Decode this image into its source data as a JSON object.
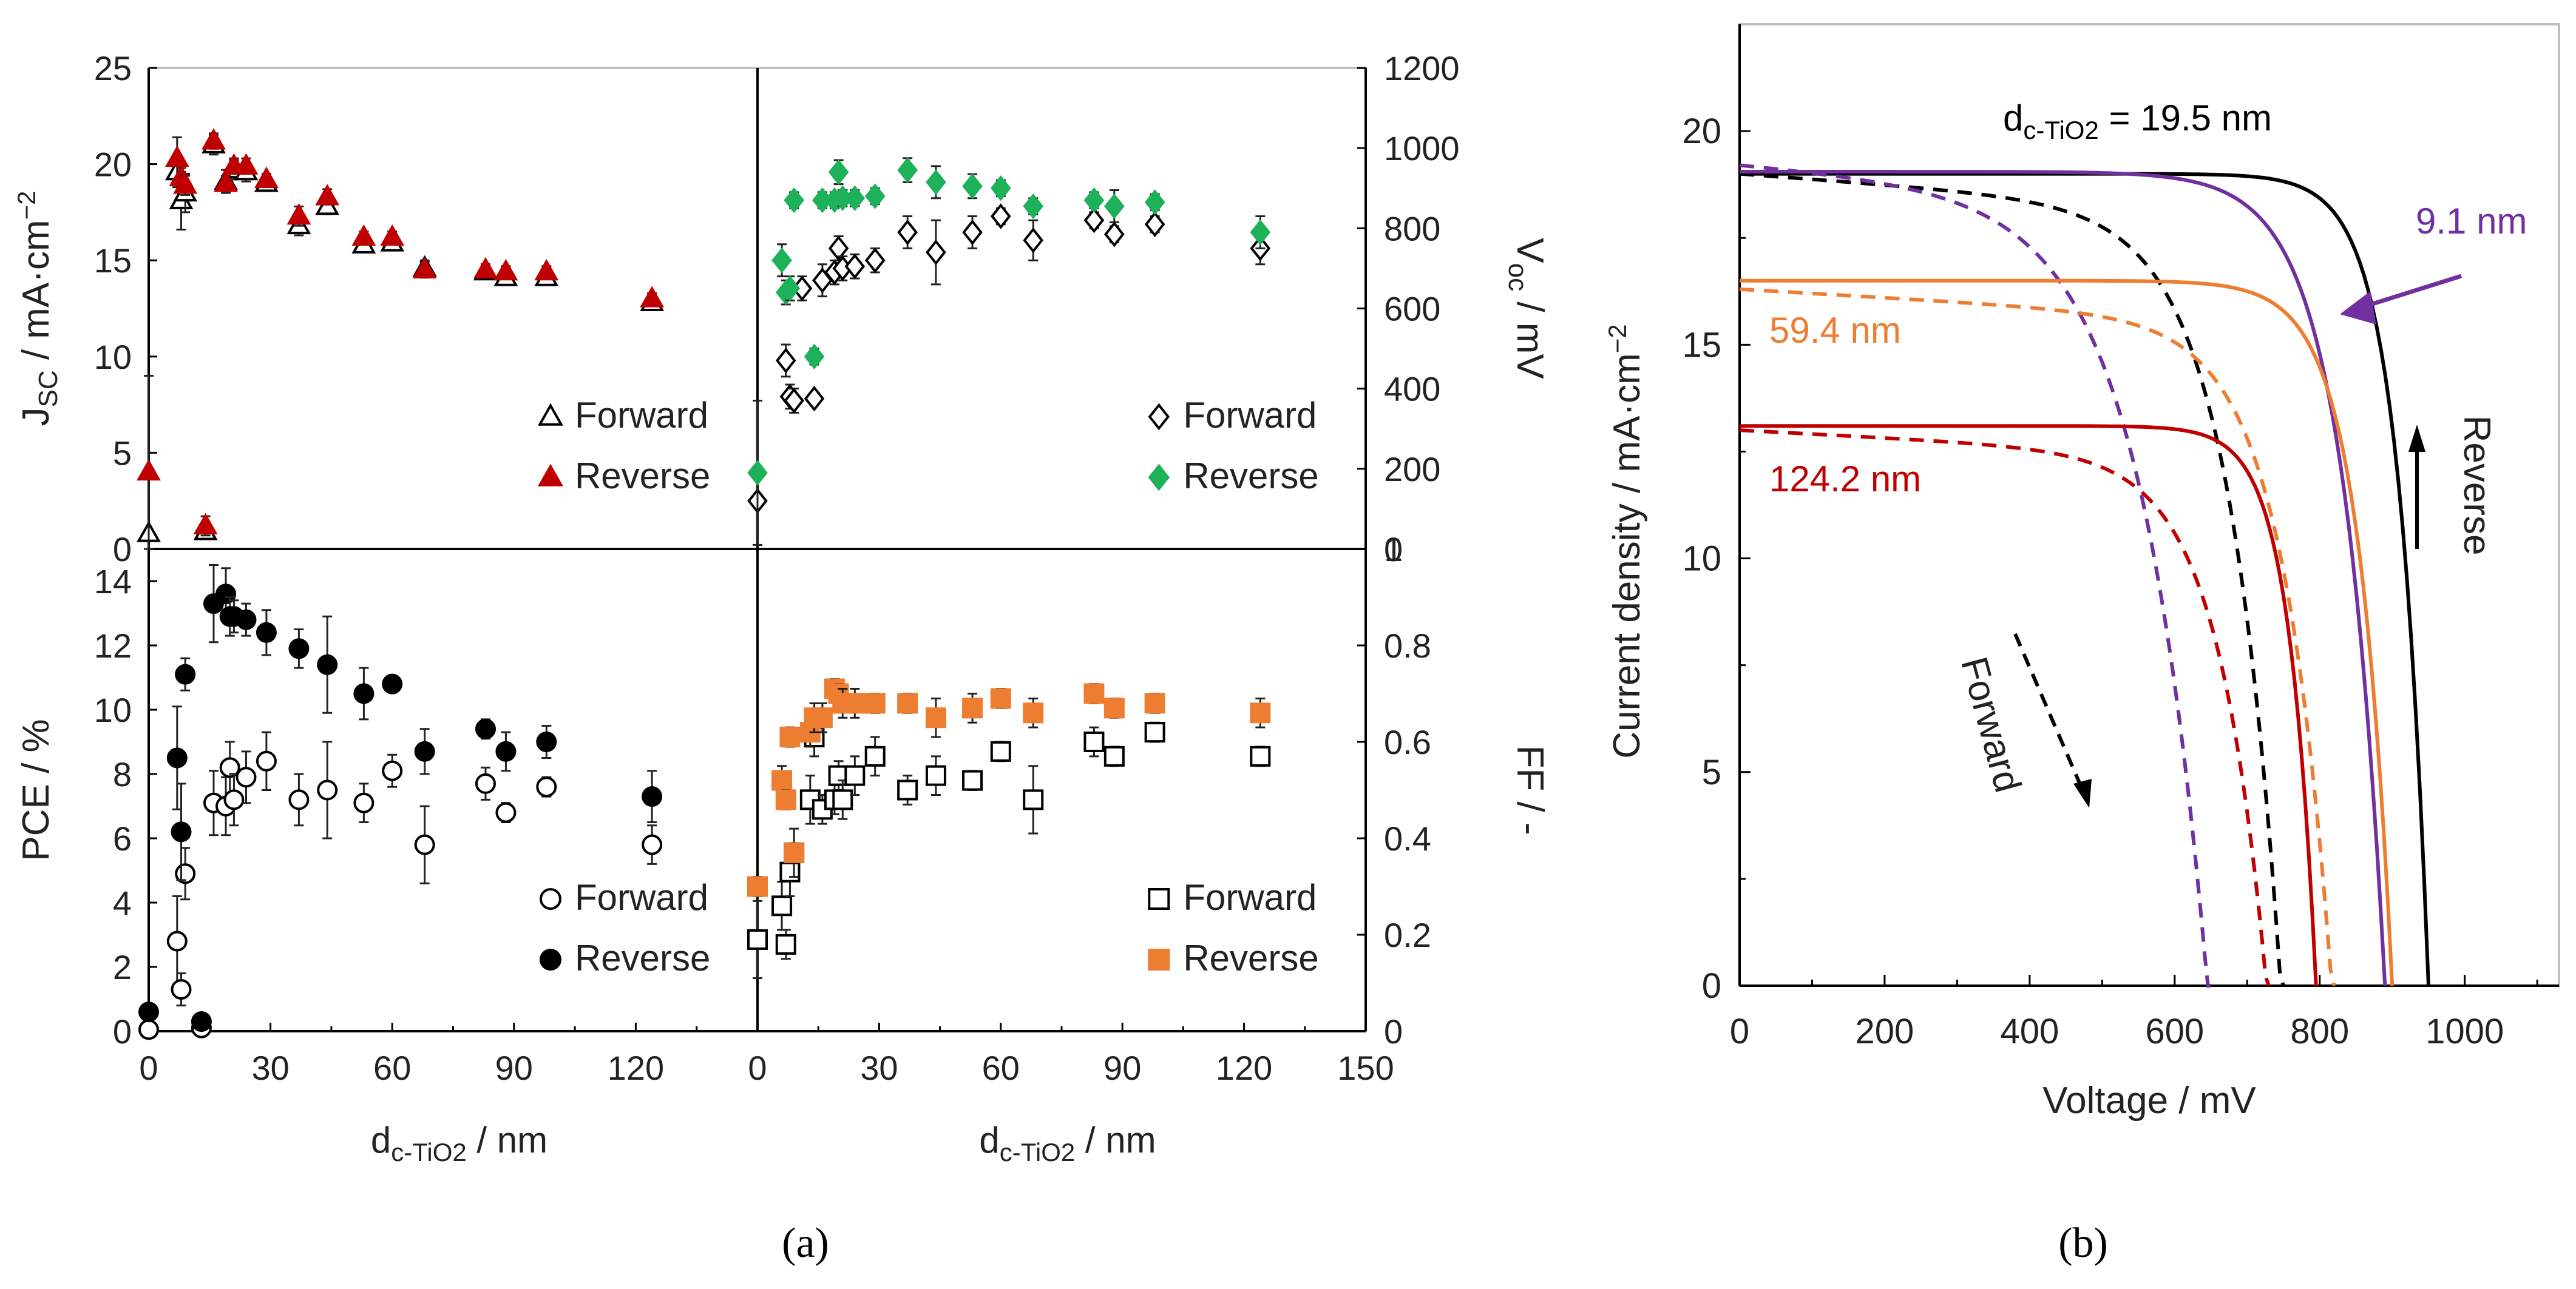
{
  "figure": {
    "panel_a_label": "(a)",
    "panel_b_label": "(b)"
  },
  "colors": {
    "red": "#c00000",
    "green": "#1db25a",
    "orange": "#ed7d31",
    "purple": "#7030a0",
    "black": "#000000"
  },
  "chart_data": [
    {
      "id": "jsc",
      "type": "scatter",
      "panel": "a",
      "position": "top-left",
      "ylabel_main": "J",
      "ylabel_sub": "SC",
      "ylabel_rest": " / mA·cm",
      "ylabel_sup": "−2",
      "ylim": [
        0,
        25
      ],
      "yticks": [
        "0",
        "5",
        "10",
        "15",
        "20",
        "25"
      ],
      "xlim": [
        0,
        150
      ],
      "series": [
        {
          "name": "Forward",
          "marker": "triangle-open",
          "color": "#000000",
          "x": [
            0,
            7,
            8,
            9,
            14,
            16,
            19,
            21,
            24,
            29,
            37,
            44,
            53,
            60,
            68,
            83,
            88,
            98,
            124
          ],
          "y": [
            0.8,
            19.6,
            18.1,
            18.5,
            0.9,
            21.0,
            19.1,
            19.7,
            19.6,
            19.0,
            16.8,
            17.8,
            15.8,
            15.9,
            14.6,
            14.4,
            14.1,
            14.1,
            12.8
          ],
          "err": [
            0,
            0.8,
            1.5,
            1.0,
            0,
            0.5,
            0.6,
            0.5,
            0.5,
            0.4,
            0.5,
            0.4,
            0.3,
            0.3,
            0.4,
            0.3,
            0.3,
            0.3,
            0.3
          ]
        },
        {
          "name": "Reverse",
          "marker": "triangle-filled",
          "color": "#c00000",
          "x": [
            0,
            7,
            8,
            9,
            14,
            16,
            19,
            21,
            24,
            29,
            37,
            44,
            53,
            60,
            68,
            83,
            88,
            98,
            124
          ],
          "y": [
            4.0,
            20.3,
            19.3,
            18.9,
            1.2,
            21.2,
            19.0,
            19.9,
            19.9,
            19.2,
            17.3,
            18.3,
            16.2,
            16.2,
            14.5,
            14.5,
            14.4,
            14.4,
            13.0
          ],
          "err": [
            5.0,
            1.1,
            0.5,
            0.5,
            0.5,
            0.4,
            0.4,
            0.4,
            0.4,
            0.3,
            0.5,
            0.4,
            0.3,
            0.3,
            0.4,
            0.3,
            0.3,
            0.3,
            0.3
          ]
        }
      ],
      "legend": [
        {
          "label": "Forward",
          "marker": "triangle-open",
          "color": "#000000"
        },
        {
          "label": "Reverse",
          "marker": "triangle-filled",
          "color": "#c00000"
        }
      ],
      "legend_placement": "bottom-right"
    },
    {
      "id": "voc",
      "type": "scatter",
      "panel": "a",
      "position": "top-right",
      "ylabel_main": "V",
      "ylabel_sub": "oc",
      "ylabel_rest": " / mV",
      "ylim": [
        0,
        1200
      ],
      "yticks": [
        "0",
        "200",
        "400",
        "600",
        "800",
        "1000",
        "1200"
      ],
      "xlim": [
        0,
        150
      ],
      "series": [
        {
          "name": "Forward",
          "marker": "diamond-open",
          "color": "#000000",
          "x": [
            0,
            7,
            8,
            9,
            11,
            14,
            16,
            19,
            20,
            21,
            24,
            29,
            37,
            44,
            53,
            60,
            68,
            83,
            88,
            98,
            124
          ],
          "y": [
            120,
            470,
            380,
            370,
            650,
            375,
            670,
            690,
            750,
            700,
            705,
            720,
            790,
            740,
            790,
            830,
            770,
            820,
            785,
            810,
            750
          ],
          "err": [
            0,
            40,
            30,
            30,
            30,
            0,
            40,
            30,
            30,
            30,
            30,
            30,
            40,
            80,
            40,
            20,
            50,
            20,
            20,
            20,
            40
          ]
        },
        {
          "name": "Reverse",
          "marker": "diamond-filled",
          "color": "#1db25a",
          "x": [
            0,
            6,
            7,
            8,
            9,
            14,
            16,
            19,
            20,
            21,
            24,
            29,
            37,
            44,
            53,
            60,
            68,
            83,
            88,
            98,
            124
          ],
          "y": [
            190,
            720,
            640,
            650,
            870,
            480,
            870,
            870,
            940,
            875,
            875,
            880,
            945,
            915,
            905,
            900,
            855,
            870,
            855,
            865,
            790
          ],
          "err": [
            180,
            40,
            30,
            30,
            20,
            20,
            20,
            20,
            30,
            20,
            20,
            20,
            30,
            40,
            30,
            20,
            20,
            20,
            40,
            20,
            40
          ]
        }
      ],
      "legend": [
        {
          "label": "Forward",
          "marker": "diamond-open",
          "color": "#000000"
        },
        {
          "label": "Reverse",
          "marker": "diamond-filled",
          "color": "#1db25a"
        }
      ],
      "legend_placement": "bottom-right"
    },
    {
      "id": "pce",
      "type": "scatter",
      "panel": "a",
      "position": "bottom-left",
      "ylabel_main": "PCE / %",
      "xlabel_main": "d",
      "xlabel_sub": "c-TiO2",
      "xlabel_rest": " / nm",
      "ylim": [
        0,
        15
      ],
      "yticks": [
        "0",
        "2",
        "4",
        "6",
        "8",
        "10",
        "12",
        "14"
      ],
      "xlim": [
        0,
        150
      ],
      "xticks": [
        "0",
        "30",
        "60",
        "90",
        "120"
      ],
      "series": [
        {
          "name": "Forward",
          "marker": "circle-open",
          "color": "#000000",
          "x": [
            0,
            7,
            8,
            9,
            13,
            16,
            19,
            20,
            21,
            24,
            29,
            37,
            44,
            53,
            60,
            68,
            83,
            88,
            98,
            124
          ],
          "y": [
            0.05,
            2.8,
            1.3,
            4.9,
            0.1,
            7.1,
            7.0,
            8.2,
            7.2,
            7.9,
            8.4,
            7.2,
            7.5,
            7.1,
            8.1,
            5.8,
            7.7,
            6.8,
            7.6,
            5.8
          ],
          "err": [
            0,
            1.4,
            0.5,
            0.8,
            0,
            1.0,
            0.9,
            0.8,
            0.8,
            0.8,
            0.9,
            0.8,
            1.5,
            0.6,
            0.5,
            1.2,
            0.5,
            0.3,
            0.3,
            0.6
          ]
        },
        {
          "name": "Reverse",
          "marker": "circle-filled",
          "color": "#000000",
          "x": [
            0,
            7,
            8,
            9,
            13,
            16,
            19,
            20,
            21,
            24,
            29,
            37,
            44,
            53,
            60,
            68,
            83,
            88,
            98,
            124
          ],
          "y": [
            0.6,
            8.5,
            6.2,
            11.1,
            0.3,
            13.3,
            13.6,
            12.9,
            12.9,
            12.8,
            12.4,
            11.9,
            11.4,
            10.5,
            10.8,
            8.7,
            9.4,
            8.7,
            9.0,
            7.3
          ],
          "err": [
            0,
            1.6,
            1.5,
            0.5,
            0,
            1.2,
            0.8,
            0.6,
            0.5,
            0.5,
            0.7,
            0.6,
            1.5,
            0.8,
            0.2,
            0.7,
            0.3,
            0.6,
            0.5,
            0.8
          ]
        }
      ],
      "legend": [
        {
          "label": "Forward",
          "marker": "circle-open",
          "color": "#000000"
        },
        {
          "label": "Reverse",
          "marker": "circle-filled",
          "color": "#000000"
        }
      ],
      "legend_placement": "bottom-right"
    },
    {
      "id": "ff",
      "type": "scatter",
      "panel": "a",
      "position": "bottom-right",
      "ylabel_main": "FF / -",
      "xlabel_main": "d",
      "xlabel_sub": "c-TiO2",
      "xlabel_rest": " / nm",
      "ylim": [
        0,
        1
      ],
      "yticks": [
        "0",
        "0.2",
        "0.4",
        "0.6",
        "0.8",
        "1"
      ],
      "xlim": [
        0,
        150
      ],
      "xticks": [
        "0",
        "30",
        "60",
        "90",
        "120",
        "150"
      ],
      "series": [
        {
          "name": "Forward",
          "marker": "square-open",
          "color": "#000000",
          "x": [
            0,
            6,
            7,
            8,
            9,
            13,
            14,
            16,
            19,
            20,
            21,
            24,
            29,
            37,
            44,
            53,
            60,
            68,
            83,
            88,
            98,
            124
          ],
          "y": [
            0.19,
            0.26,
            0.18,
            0.33,
            0.37,
            0.48,
            0.61,
            0.46,
            0.48,
            0.53,
            0.48,
            0.53,
            0.57,
            0.5,
            0.53,
            0.52,
            0.58,
            0.48,
            0.6,
            0.57,
            0.62,
            0.57
          ],
          "err": [
            0.08,
            0.05,
            0.03,
            0.05,
            0.05,
            0.05,
            0.04,
            0.03,
            0.03,
            0.03,
            0.04,
            0.04,
            0.04,
            0.03,
            0.04,
            0.02,
            0.02,
            0.07,
            0.03,
            0.02,
            0.02,
            0.02
          ]
        },
        {
          "name": "Reverse",
          "marker": "square-filled",
          "color": "#ed7d31",
          "x": [
            0,
            6,
            7,
            8,
            9,
            13,
            14,
            16,
            19,
            20,
            21,
            24,
            29,
            37,
            44,
            53,
            60,
            68,
            83,
            88,
            98,
            124
          ],
          "y": [
            0.3,
            0.52,
            0.48,
            0.61,
            0.37,
            0.62,
            0.65,
            0.65,
            0.71,
            0.7,
            0.68,
            0.68,
            0.68,
            0.68,
            0.65,
            0.67,
            0.69,
            0.66,
            0.7,
            0.67,
            0.68,
            0.66
          ],
          "err": [
            0.02,
            0.03,
            0.02,
            0.02,
            0.02,
            0.03,
            0.03,
            0.03,
            0.02,
            0.02,
            0.03,
            0.03,
            0.02,
            0.02,
            0.04,
            0.03,
            0.02,
            0.03,
            0.02,
            0.02,
            0.02,
            0.03
          ]
        }
      ],
      "legend": [
        {
          "label": "Forward",
          "marker": "square-open",
          "color": "#000000"
        },
        {
          "label": "Reverse",
          "marker": "square-filled",
          "color": "#ed7d31"
        }
      ],
      "legend_placement": "bottom-right"
    },
    {
      "id": "jv",
      "type": "line",
      "panel": "b",
      "ylabel": "Current density / mA·cm",
      "ylabel_sup": "−2",
      "xlabel": "Voltage / mV",
      "xlim": [
        0,
        1130
      ],
      "ylim": [
        0,
        22.5
      ],
      "xticks": [
        "0",
        "200",
        "400",
        "600",
        "800",
        "1000"
      ],
      "yticks": [
        "0",
        "5",
        "10",
        "15",
        "20"
      ],
      "series": [
        {
          "name": "19.5 nm reverse",
          "color": "#000000",
          "dashed": false,
          "jsc": 19.0,
          "voc": 950,
          "knee": 0.82
        },
        {
          "name": "19.5 nm forward",
          "color": "#000000",
          "dashed": true,
          "jsc": 19.0,
          "voc": 750,
          "knee": 0.55
        },
        {
          "name": "9.1 nm reverse",
          "color": "#7030a0",
          "dashed": false,
          "jsc": 19.05,
          "voc": 890,
          "knee": 0.7
        },
        {
          "name": "9.1 nm forward",
          "color": "#7030a0",
          "dashed": true,
          "jsc": 19.2,
          "voc": 650,
          "knee": 0.3
        },
        {
          "name": "59.4 nm reverse",
          "color": "#ed7d31",
          "dashed": false,
          "jsc": 16.5,
          "voc": 900,
          "knee": 0.78
        },
        {
          "name": "59.4 nm forward",
          "color": "#ed7d31",
          "dashed": true,
          "jsc": 16.3,
          "voc": 820,
          "knee": 0.62
        },
        {
          "name": "124.2 nm reverse",
          "color": "#c00000",
          "dashed": false,
          "jsc": 13.1,
          "voc": 795,
          "knee": 0.82
        },
        {
          "name": "124.2 nm forward",
          "color": "#c00000",
          "dashed": true,
          "jsc": 13.0,
          "voc": 730,
          "knee": 0.58
        }
      ],
      "annotations": {
        "main_label_prefix": "d",
        "main_label_sub": "c-TiO2",
        "main_label_rest": " = 19.5 nm",
        "label_9": "9.1 nm",
        "label_59": "59.4 nm",
        "label_124": "124.2 nm",
        "reverse": "Reverse",
        "forward": "Forward"
      }
    }
  ]
}
